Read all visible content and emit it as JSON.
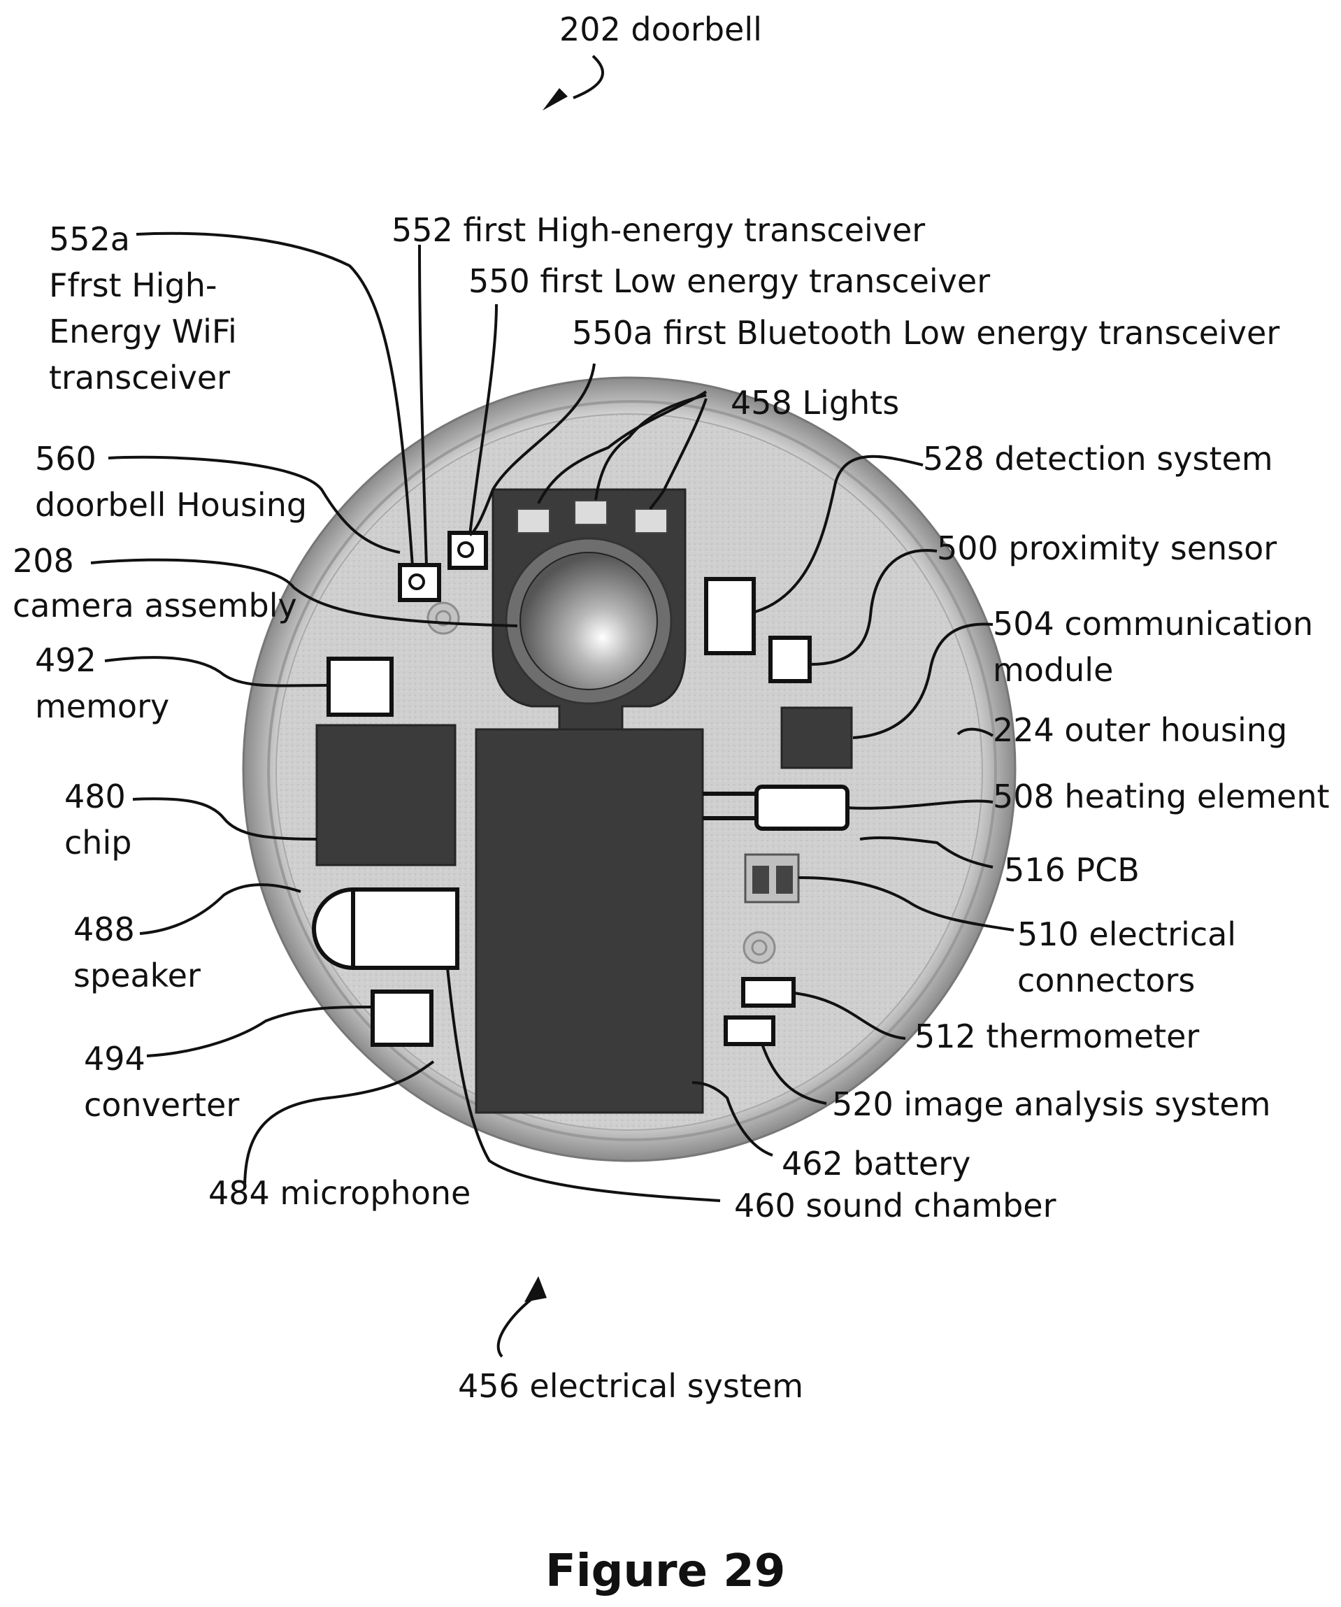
{
  "title": {
    "figure": "Figure 29",
    "subject": "202 doorbell",
    "system": "456 electrical system"
  },
  "labels": {
    "l552a": [
      "552a",
      "Ffrst High-",
      "Energy WiFi",
      "transceiver"
    ],
    "l552": "552 first High-energy transceiver",
    "l550": "550 first Low energy transceiver",
    "l550a": "550a first Bluetooth Low energy transceiver",
    "l458": "458 Lights",
    "l560": [
      "560",
      "doorbell Housing"
    ],
    "l528": "528 detection system",
    "l208": [
      "208",
      "camera assembly"
    ],
    "l500": "500 proximity sensor",
    "l504": [
      "504 communication",
      "module"
    ],
    "l492": [
      "492",
      "memory"
    ],
    "l224": "224 outer housing",
    "l480": [
      "480",
      "chip"
    ],
    "l508": "508 heating element",
    "l516": "516 PCB",
    "l488": [
      "488",
      "speaker"
    ],
    "l510": [
      "510 electrical",
      "connectors"
    ],
    "l512": "512 thermometer",
    "l494": [
      "494",
      "converter"
    ],
    "l520": "520 image analysis system",
    "l484": "484 microphone",
    "l462": "462 battery",
    "l460": "460 sound chamber"
  },
  "colors": {
    "board": "#cfcfcf",
    "dark_component": "#3b3b3b",
    "ink": "#111111"
  }
}
